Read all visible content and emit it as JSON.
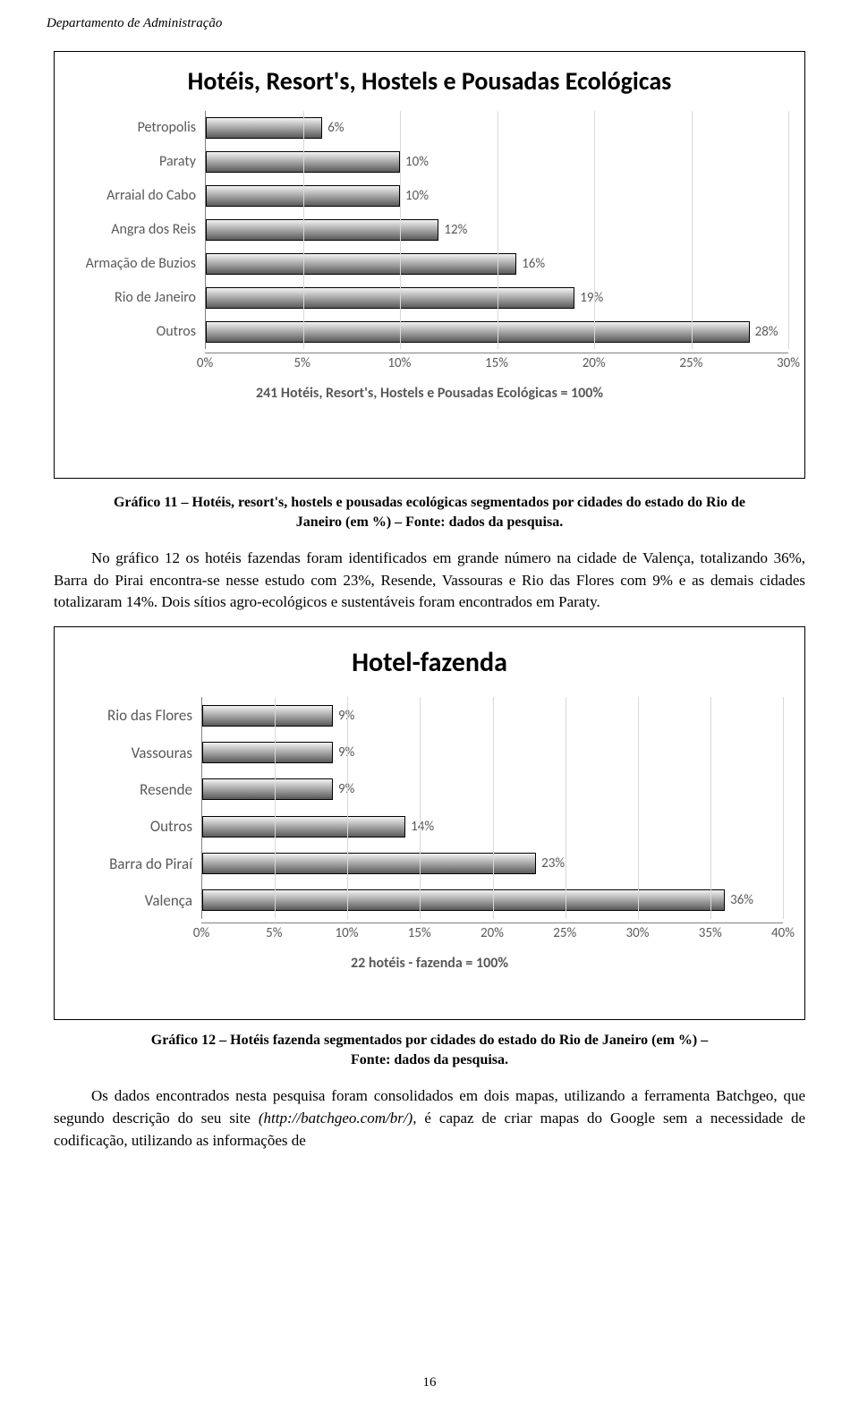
{
  "header": {
    "dept": "Departamento de Administração"
  },
  "chart1": {
    "type": "bar-horizontal",
    "title": "Hotéis, Resort's, Hostels e Pousadas Ecológicas",
    "title_fontsize": 28,
    "categories": [
      "Petropolis",
      "Paraty",
      "Arraial do Cabo",
      "Angra dos Reis",
      "Armação de Buzios",
      "Rio de Janeiro",
      "Outros"
    ],
    "values": [
      6,
      10,
      10,
      12,
      16,
      19,
      28
    ],
    "value_labels": [
      "6%",
      "10%",
      "10%",
      "12%",
      "16%",
      "19%",
      "28%"
    ],
    "xlim": [
      0,
      30
    ],
    "xtick_step": 5,
    "xticks": [
      "0%",
      "5%",
      "10%",
      "15%",
      "20%",
      "25%",
      "30%"
    ],
    "bar_fill_top": "#f2f2f2",
    "bar_fill_bottom": "#5a5a5a",
    "bar_border": "#000000",
    "grid_color": "#d9d9d9",
    "axis_color": "#808080",
    "label_color": "#595959",
    "label_fontsize": 16,
    "footer": "241 Hotéis, Resort's, Hostels e Pousadas Ecológicas = 100%",
    "background_color": "#ffffff"
  },
  "caption1": {
    "line1": "Gráfico 11 – Hotéis, resort's, hostels e pousadas ecológicas segmentados por cidades do estado do Rio de",
    "line2": "Janeiro (em %) – Fonte: dados da pesquisa."
  },
  "para1": "No gráfico 12 os hotéis fazendas foram identificados em grande número na cidade de Valença, totalizando 36%, Barra do Pirai encontra-se nesse estudo com 23%, Resende, Vassouras e Rio das Flores com 9% e as demais cidades totalizaram 14%. Dois sítios agro-ecológicos e sustentáveis foram encontrados em Paraty.",
  "chart2": {
    "type": "bar-horizontal",
    "title": "Hotel-fazenda",
    "title_fontsize": 30,
    "categories": [
      "Rio das Flores",
      "Vassouras",
      "Resende",
      "Outros",
      "Barra do Piraí",
      "Valença"
    ],
    "values": [
      9,
      9,
      9,
      14,
      23,
      36
    ],
    "value_labels": [
      "9%",
      "9%",
      "9%",
      "14%",
      "23%",
      "36%"
    ],
    "xlim": [
      0,
      40
    ],
    "xtick_step": 5,
    "xticks": [
      "0%",
      "5%",
      "10%",
      "15%",
      "20%",
      "25%",
      "30%",
      "35%",
      "40%"
    ],
    "bar_fill_top": "#f2f2f2",
    "bar_fill_bottom": "#5a5a5a",
    "bar_border": "#000000",
    "grid_color": "#d9d9d9",
    "axis_color": "#808080",
    "label_color": "#595959",
    "label_fontsize": 17,
    "footer": "22 hotéis - fazenda = 100%",
    "background_color": "#ffffff"
  },
  "caption2": {
    "line1": "Gráfico 12 – Hotéis fazenda segmentados por cidades do estado do Rio de Janeiro (em %) –",
    "line2": "Fonte: dados da pesquisa."
  },
  "para2_a": "Os dados encontrados nesta pesquisa foram consolidados em dois mapas, utilizando a ferramenta Batchgeo, que segundo descrição do seu site ",
  "para2_url": "(http://batchgeo.com/br/),",
  "para2_b": " é capaz de criar mapas do Google sem a necessidade de codificação, utilizando as informações de",
  "page_number": "16"
}
